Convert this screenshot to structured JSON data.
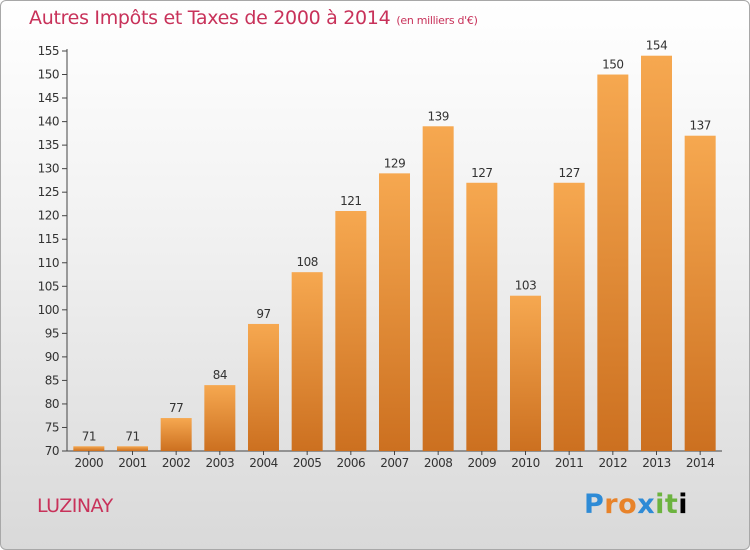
{
  "title": "Autres Impôts et Taxes de 2000 à 2014",
  "subtitle": "(en milliers d'€)",
  "commune": "LUZINAY",
  "logo_text": "Proxiti",
  "colors": {
    "title": "#c8325a",
    "bar_light": "#f6a850",
    "bar_dark": "#cc7020"
  },
  "chart_data": {
    "type": "bar",
    "title": "Autres Impôts et Taxes de 2000 à 2014",
    "subtitle": "(en milliers d'€)",
    "categories": [
      "2000",
      "2001",
      "2002",
      "2003",
      "2004",
      "2005",
      "2006",
      "2007",
      "2008",
      "2009",
      "2010",
      "2011",
      "2012",
      "2013",
      "2014"
    ],
    "values": [
      71,
      71,
      77,
      84,
      97,
      108,
      121,
      129,
      139,
      127,
      103,
      127,
      150,
      154,
      137
    ],
    "ylim": [
      70,
      155
    ],
    "yticks": [
      70,
      75,
      80,
      85,
      90,
      95,
      100,
      105,
      110,
      115,
      120,
      125,
      130,
      135,
      140,
      145,
      150,
      155
    ],
    "grid": false,
    "xlabel": "",
    "ylabel": ""
  }
}
